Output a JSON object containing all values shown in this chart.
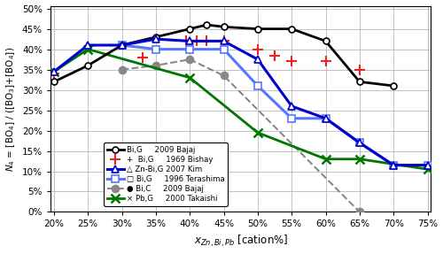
{
  "background_color": "white",
  "grid_color": "#aaaaaa",
  "xlim": [
    0.195,
    0.755
  ],
  "ylim": [
    0.0,
    0.505
  ],
  "xticks": [
    0.2,
    0.25,
    0.3,
    0.35,
    0.4,
    0.45,
    0.5,
    0.55,
    0.6,
    0.65,
    0.7,
    0.75
  ],
  "yticks": [
    0.0,
    0.05,
    0.1,
    0.15,
    0.2,
    0.25,
    0.3,
    0.35,
    0.4,
    0.45,
    0.5
  ],
  "series": [
    {
      "name": "Bi_G_Bajaj",
      "x": [
        0.2,
        0.25,
        0.3,
        0.35,
        0.4,
        0.425,
        0.45,
        0.5,
        0.55,
        0.6,
        0.65,
        0.7
      ],
      "y": [
        0.32,
        0.36,
        0.41,
        0.43,
        0.45,
        0.46,
        0.455,
        0.45,
        0.45,
        0.42,
        0.32,
        0.31
      ],
      "color": "black",
      "marker": "o",
      "ms": 5,
      "lw": 2.0,
      "ls": "-",
      "mfc": "white",
      "mew": 1.2,
      "zorder": 5,
      "legend_label": "Bi,G     2009 Bajaj"
    },
    {
      "name": "Bi_G_Bishay",
      "x": [
        0.2,
        0.33,
        0.395,
        0.41,
        0.425,
        0.45,
        0.5,
        0.525,
        0.55,
        0.6,
        0.65
      ],
      "y": [
        0.34,
        0.38,
        0.42,
        0.42,
        0.42,
        0.42,
        0.4,
        0.385,
        0.37,
        0.37,
        0.35
      ],
      "color": "#ee2222",
      "marker": "+",
      "ms": 8,
      "lw": 0,
      "ls": "none",
      "mfc": "#ee2222",
      "mew": 1.5,
      "zorder": 4,
      "legend_label": "+  Bi,G     1969 Bishay"
    },
    {
      "name": "ZnBi_G_Kim",
      "x": [
        0.2,
        0.25,
        0.3,
        0.35,
        0.4,
        0.45,
        0.5,
        0.55,
        0.6,
        0.65,
        0.7,
        0.75
      ],
      "y": [
        0.345,
        0.41,
        0.41,
        0.425,
        0.42,
        0.42,
        0.375,
        0.26,
        0.23,
        0.17,
        0.115,
        0.115
      ],
      "color": "#0000cc",
      "marker": "^",
      "ms": 6,
      "lw": 2.2,
      "ls": "-",
      "mfc": "white",
      "mew": 1.2,
      "zorder": 5,
      "legend_label": "△ Zn-Bi,G 2007 Kim"
    },
    {
      "name": "Bi_G_Terashima",
      "x": [
        0.3,
        0.35,
        0.4,
        0.45,
        0.5,
        0.55,
        0.6,
        0.65,
        0.7,
        0.75
      ],
      "y": [
        0.41,
        0.4,
        0.4,
        0.4,
        0.31,
        0.23,
        0.23,
        0.17,
        0.115,
        0.115
      ],
      "color": "#5577ff",
      "marker": "s",
      "ms": 6,
      "lw": 2.2,
      "ls": "-",
      "mfc": "white",
      "mew": 1.2,
      "zorder": 4,
      "legend_label": "□ Bi,G     1996 Terashima"
    },
    {
      "name": "Bi_C_Bajaj",
      "x": [
        0.3,
        0.35,
        0.4,
        0.45,
        0.65
      ],
      "y": [
        0.35,
        0.36,
        0.375,
        0.335,
        0.0
      ],
      "color": "#888888",
      "marker": "o",
      "ms": 6,
      "lw": 1.5,
      "ls": "--",
      "mfc": "#888888",
      "mew": 1.0,
      "zorder": 3,
      "legend_label": "● Bi,C     2009 Bajaj"
    },
    {
      "name": "Pb_G_Takaishi",
      "x": [
        0.2,
        0.25,
        0.4,
        0.5,
        0.6,
        0.65,
        0.75
      ],
      "y": [
        0.345,
        0.4,
        0.33,
        0.195,
        0.13,
        0.13,
        0.105
      ],
      "color": "#007700",
      "marker": "x",
      "ms": 7,
      "lw": 2.0,
      "ls": "-",
      "mfc": "#007700",
      "mew": 1.8,
      "zorder": 4,
      "legend_label": "× Pb,G     2000 Takaishi"
    }
  ]
}
